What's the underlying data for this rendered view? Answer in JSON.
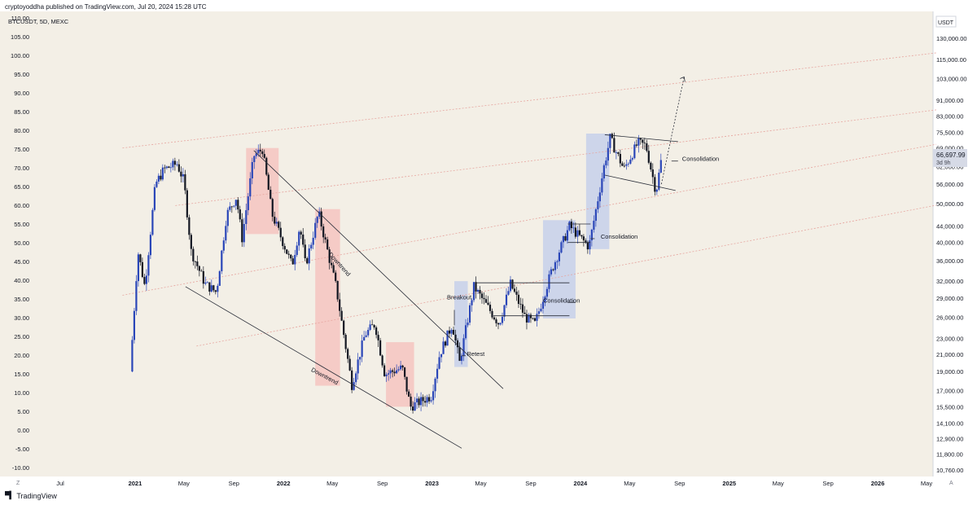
{
  "header": {
    "publisher": "cryptoyoddha",
    "published_text": " published on TradingView.com, Jul 20, 2024 15:28 UTC"
  },
  "footer": {
    "brand": "TradingView"
  },
  "colors": {
    "candle": "#131722",
    "bull_candle": "#2a46b8",
    "red_zone": "#f5c4c0",
    "blue_zone": "#c5d0ea",
    "channel": "#e6a59f",
    "trendline": "#2a2e39",
    "background": "#f3efe6"
  },
  "chart_data": {
    "type": "candlestick",
    "symbol_legend": "BTCUSDT, 5D, MEXC",
    "currency": "USDT",
    "last_price_label": "66,697.99",
    "countdown": "3d 9h",
    "scale_toggles": [
      "Z",
      "A"
    ],
    "left_axis": {
      "labels": [
        "110.00",
        "105.00",
        "100.00",
        "95.00",
        "90.00",
        "85.00",
        "80.00",
        "75.00",
        "70.00",
        "65.00",
        "60.00",
        "55.00",
        "50.00",
        "45.00",
        "40.00",
        "35.00",
        "30.00",
        "25.00",
        "20.00",
        "15.00",
        "10.00",
        "5.00",
        "0.00",
        "-5.00",
        "-10.00"
      ],
      "values": [
        110,
        105,
        100,
        95,
        90,
        85,
        80,
        75,
        70,
        65,
        60,
        55,
        50,
        45,
        40,
        35,
        30,
        25,
        20,
        15,
        10,
        5,
        0,
        -5,
        -10
      ]
    },
    "right_axis": {
      "scale": "log",
      "labels": [
        "130,000.00",
        "115,000.00",
        "103,000.00",
        "91,000.00",
        "83,000.00",
        "75,500.00",
        "69,000.00",
        "62,000.00",
        "56,000.00",
        "50,000.00",
        "44,000.00",
        "40,000.00",
        "36,000.00",
        "32,000.00",
        "29,000.00",
        "26,000.00",
        "23,000.00",
        "21,000.00",
        "19,000.00",
        "17,000.00",
        "15,500.00",
        "14,100.00",
        "12,900.00",
        "11,800.00",
        "10,760.00"
      ],
      "values": [
        130000,
        115000,
        103000,
        91000,
        83000,
        75500,
        69000,
        62000,
        56000,
        50000,
        44000,
        40000,
        36000,
        32000,
        29000,
        26000,
        23000,
        21000,
        19000,
        17000,
        15500,
        14100,
        12900,
        11800,
        10760
      ]
    },
    "time_axis": {
      "labels": [
        "Jul",
        "2021",
        "May",
        "Sep",
        "2022",
        "May",
        "Sep",
        "2023",
        "May",
        "Sep",
        "2024",
        "May",
        "Sep",
        "2025",
        "May",
        "Sep",
        "2026",
        "May"
      ],
      "dates": [
        "2020-07-01",
        "2021-01-01",
        "2021-05-01",
        "2021-09-01",
        "2022-01-01",
        "2022-05-01",
        "2022-09-01",
        "2023-01-01",
        "2023-05-01",
        "2023-09-01",
        "2024-01-01",
        "2024-05-01",
        "2024-09-01",
        "2025-01-01",
        "2025-05-01",
        "2025-09-01",
        "2026-01-01",
        "2026-05-01"
      ],
      "bold": [
        false,
        true,
        false,
        false,
        true,
        false,
        false,
        true,
        false,
        false,
        true,
        false,
        false,
        true,
        false,
        false,
        true,
        false
      ]
    },
    "price_path": [
      [
        "2020-12-20",
        19000
      ],
      [
        "2021-01-08",
        38000
      ],
      [
        "2021-01-25",
        31000
      ],
      [
        "2021-02-20",
        56000
      ],
      [
        "2021-03-13",
        61000
      ],
      [
        "2021-04-14",
        63000
      ],
      [
        "2021-05-01",
        57000
      ],
      [
        "2021-05-19",
        38000
      ],
      [
        "2021-06-22",
        31500
      ],
      [
        "2021-07-20",
        30000
      ],
      [
        "2021-08-14",
        47000
      ],
      [
        "2021-09-07",
        52000
      ],
      [
        "2021-09-21",
        41000
      ],
      [
        "2021-10-20",
        66000
      ],
      [
        "2021-11-10",
        68500
      ],
      [
        "2021-12-04",
        47000
      ],
      [
        "2022-01-22",
        35000
      ],
      [
        "2022-02-10",
        44000
      ],
      [
        "2022-02-24",
        35000
      ],
      [
        "2022-03-28",
        47500
      ],
      [
        "2022-05-10",
        31000
      ],
      [
        "2022-06-18",
        17600
      ],
      [
        "2022-07-20",
        23500
      ],
      [
        "2022-08-14",
        25000
      ],
      [
        "2022-09-07",
        18700
      ],
      [
        "2022-10-20",
        19400
      ],
      [
        "2022-11-09",
        15500
      ],
      [
        "2022-12-30",
        16500
      ],
      [
        "2023-01-20",
        21000
      ],
      [
        "2023-02-20",
        25000
      ],
      [
        "2023-03-10",
        20000
      ],
      [
        "2023-04-14",
        31000
      ],
      [
        "2023-06-15",
        25000
      ],
      [
        "2023-07-13",
        31500
      ],
      [
        "2023-08-18",
        26000
      ],
      [
        "2023-09-11",
        25000
      ],
      [
        "2023-10-24",
        34500
      ],
      [
        "2023-12-05",
        44000
      ],
      [
        "2024-01-22",
        39000
      ],
      [
        "2024-02-28",
        62000
      ],
      [
        "2024-03-14",
        73000
      ],
      [
        "2024-04-17",
        61000
      ],
      [
        "2024-05-21",
        71000
      ],
      [
        "2024-06-10",
        70000
      ],
      [
        "2024-07-05",
        53500
      ],
      [
        "2024-07-20",
        66700
      ]
    ],
    "zones": [
      {
        "color": "red",
        "from": "2021-10-01",
        "to": "2021-12-20",
        "high": 69000,
        "low": 42000
      },
      {
        "color": "red",
        "from": "2022-03-20",
        "to": "2022-05-20",
        "high": 48500,
        "low": 17500
      },
      {
        "color": "red",
        "from": "2022-09-10",
        "to": "2022-11-18",
        "high": 22500,
        "low": 15500
      },
      {
        "color": "blue",
        "from": "2023-02-25",
        "to": "2023-03-30",
        "high": 32000,
        "low": 19500
      },
      {
        "color": "blue",
        "from": "2023-10-01",
        "to": "2023-12-20",
        "high": 45500,
        "low": 25800
      },
      {
        "color": "blue",
        "from": "2024-01-15",
        "to": "2024-03-12",
        "high": 75000,
        "low": 38500
      }
    ],
    "annotations": [
      {
        "text": "Downtrend",
        "at": [
          "2022-05-15",
          35000
        ],
        "angle": 48
      },
      {
        "text": "Downtrend",
        "at": [
          "2022-04-10",
          18300
        ],
        "angle": 28
      },
      {
        "text": "Breakout",
        "at": [
          "2023-02-07",
          28800
        ]
      },
      {
        "text": "Retest",
        "at": [
          "2023-03-28",
          20800
        ]
      },
      {
        "text": "Consolidation",
        "at": [
          "2023-10-01",
          28300
        ]
      },
      {
        "text": "Consolidation",
        "at": [
          "2024-02-20",
          40900
        ]
      },
      {
        "text": "Consolidation",
        "at": [
          "2024-09-07",
          64000
        ]
      }
    ]
  }
}
